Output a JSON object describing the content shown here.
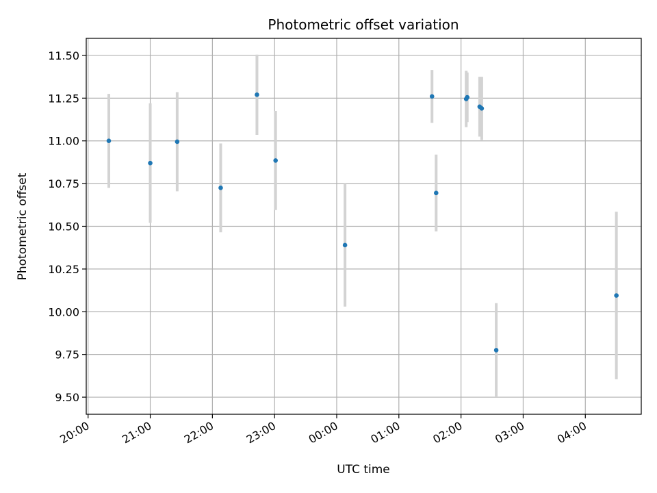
{
  "chart_data": {
    "type": "scatter",
    "title": "Photometric offset variation",
    "xlabel": "UTC time",
    "ylabel": "Photometric offset",
    "x_ticks": [
      "20:00",
      "21:00",
      "22:00",
      "23:00",
      "00:00",
      "01:00",
      "02:00",
      "03:00",
      "04:00"
    ],
    "y_ticks": [
      "9.50",
      "9.75",
      "10.00",
      "10.25",
      "10.50",
      "10.75",
      "11.00",
      "11.25",
      "11.50"
    ],
    "xlim_hours": [
      19.97,
      28.9
    ],
    "ylim": [
      9.4,
      11.6
    ],
    "grid": true,
    "marker_color": "#1f77b4",
    "errorbar_color": "#d3d3d3",
    "x": [
      "20:20",
      "21:00",
      "21:26",
      "22:08",
      "22:43",
      "23:01",
      "00:08",
      "01:32",
      "01:36",
      "02:05",
      "02:06",
      "02:18",
      "02:20",
      "02:34",
      "04:30"
    ],
    "y": [
      11.0,
      10.87,
      10.995,
      10.725,
      11.27,
      10.885,
      10.39,
      11.26,
      10.695,
      11.245,
      11.255,
      11.2,
      11.19,
      9.775,
      10.095
    ],
    "yerr": [
      0.275,
      0.35,
      0.29,
      0.26,
      0.235,
      0.29,
      0.36,
      0.155,
      0.225,
      0.165,
      0.145,
      0.175,
      0.185,
      0.275,
      0.49
    ]
  }
}
